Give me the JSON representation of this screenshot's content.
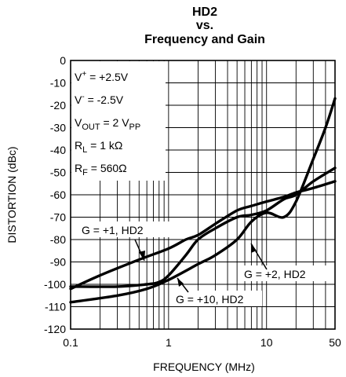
{
  "chart_data": {
    "type": "line",
    "title_lines": [
      "HD2",
      "vs.",
      "Frequency and Gain"
    ],
    "xlabel": "FREQUENCY (MHz)",
    "ylabel": "DISTORTION (dBc)",
    "x_scale": "log",
    "xlim": [
      0.1,
      50
    ],
    "ylim": [
      -120,
      0
    ],
    "grid": true,
    "x_tick_labels": [
      {
        "value": 0.1,
        "label": "0.1"
      },
      {
        "value": 1,
        "label": "1"
      },
      {
        "value": 10,
        "label": "10"
      },
      {
        "value": 50,
        "label": "50"
      }
    ],
    "y_tick_labels": [
      "0",
      "-10",
      "-20",
      "-30",
      "-40",
      "-50",
      "-60",
      "-70",
      "-80",
      "-90",
      "-100",
      "-110",
      "-120"
    ],
    "conditions": {
      "vplus": {
        "main": "V",
        "sup": "+",
        "rest": " = +2.5V"
      },
      "vminus": {
        "main": "V",
        "sup": "-",
        "rest": " = -2.5V"
      },
      "vout": {
        "main": "V",
        "sub": "OUT",
        "rest": " = 2 V",
        "sub2": "PP"
      },
      "rl": {
        "main": "R",
        "sub": "L",
        "rest": " = 1 kΩ"
      },
      "rf": {
        "main": "R",
        "sub": "F",
        "rest": " = 560Ω"
      }
    },
    "annotations": {
      "g1": "G = +1, HD2",
      "g2": "G = +2, HD2",
      "g10": "G = +10, HD2"
    },
    "series": [
      {
        "id": "g1",
        "x": [
          0.1,
          0.2,
          0.5,
          1,
          1.5,
          2,
          3,
          5,
          7,
          10,
          15,
          20,
          30,
          50
        ],
        "y": [
          -102,
          -96,
          -89,
          -84,
          -80,
          -78,
          -73,
          -67,
          -65,
          -63,
          -61,
          -59,
          -57,
          -54
        ]
      },
      {
        "id": "g2",
        "x": [
          0.1,
          0.3,
          0.6,
          1,
          2,
          3,
          5,
          7,
          10,
          15,
          20,
          30,
          40,
          50
        ],
        "y": [
          -108,
          -105,
          -102,
          -98,
          -91,
          -87,
          -80,
          -72,
          -68,
          -70,
          -63,
          -44,
          -30,
          -17
        ]
      },
      {
        "id": "g10",
        "x": [
          0.1,
          0.3,
          0.6,
          0.8,
          1,
          1.5,
          2,
          3,
          5,
          7,
          10,
          15,
          20,
          30,
          50
        ],
        "y": [
          -101,
          -101,
          -100,
          -99,
          -96,
          -87,
          -80,
          -75,
          -70,
          -69,
          -67,
          -62,
          -60,
          -54,
          -48
        ]
      }
    ]
  }
}
